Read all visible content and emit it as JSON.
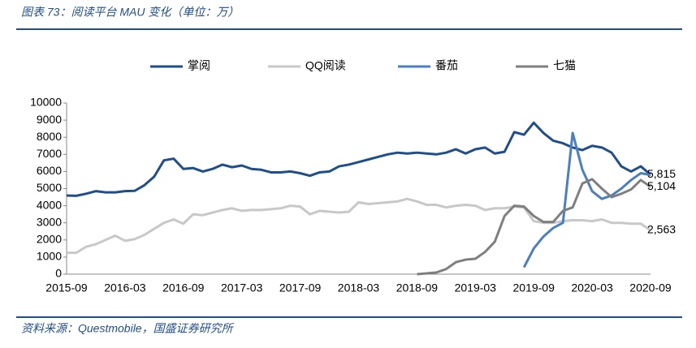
{
  "chart_data": {
    "type": "line",
    "title": "图表 73：阅读平台 MAU 变化（单位：万）",
    "source": "资料来源：Questmobile，国盛证券研究所",
    "categories": [
      "2015-09",
      null,
      null,
      null,
      null,
      null,
      "2016-03",
      null,
      null,
      null,
      null,
      null,
      "2016-09",
      null,
      null,
      null,
      null,
      null,
      "2017-03",
      null,
      null,
      null,
      null,
      null,
      "2017-09",
      null,
      null,
      null,
      null,
      null,
      "2018-03",
      null,
      null,
      null,
      null,
      null,
      "2018-09",
      null,
      null,
      null,
      null,
      null,
      "2019-03",
      null,
      null,
      null,
      null,
      null,
      "2019-09",
      null,
      null,
      null,
      null,
      null,
      "2020-03",
      null,
      null,
      null,
      null,
      null,
      "2020-09"
    ],
    "series": [
      {
        "name": "掌阅",
        "color": "#1f4e8c",
        "values": [
          4600,
          4580,
          4700,
          4850,
          4780,
          4780,
          4850,
          4870,
          5200,
          5700,
          6650,
          6750,
          6150,
          6200,
          6000,
          6150,
          6400,
          6250,
          6350,
          6150,
          6100,
          5950,
          5950,
          6000,
          5900,
          5750,
          5950,
          6000,
          6300,
          6400,
          6550,
          6700,
          6850,
          7000,
          7100,
          7050,
          7100,
          7050,
          7000,
          7100,
          7300,
          7050,
          7300,
          7400,
          7050,
          7150,
          8300,
          8150,
          8850,
          8250,
          7800,
          7650,
          7400,
          7250,
          7500,
          7400,
          7100,
          6300,
          6000,
          6300,
          5815
        ],
        "value_labels": [
          null,
          null,
          null,
          null,
          null,
          null,
          null,
          null,
          null,
          null,
          null,
          null,
          null,
          null,
          null,
          null,
          null,
          null,
          null,
          null,
          null,
          null,
          null,
          null,
          null,
          null,
          null,
          null,
          null,
          null,
          null,
          null,
          null,
          null,
          null,
          null,
          null,
          null,
          null,
          null,
          null,
          null,
          null,
          null,
          null,
          null,
          null,
          null,
          null,
          null,
          null,
          null,
          null,
          null,
          null,
          null,
          null,
          null,
          null,
          null,
          "5,815"
        ]
      },
      {
        "name": "QQ阅读",
        "color": "#c8c8c8",
        "values": [
          1250,
          1250,
          1600,
          1750,
          2000,
          2250,
          1950,
          2050,
          2300,
          2650,
          3000,
          3200,
          2950,
          3500,
          3450,
          3600,
          3750,
          3850,
          3700,
          3750,
          3750,
          3800,
          3850,
          4000,
          3950,
          3500,
          3700,
          3650,
          3600,
          3650,
          4200,
          4100,
          4150,
          4200,
          4250,
          4400,
          4250,
          4050,
          4050,
          3900,
          4000,
          4050,
          4000,
          3750,
          3850,
          3850,
          3950,
          3900,
          3100,
          3000,
          3000,
          3100,
          3150,
          3150,
          3100,
          3200,
          3000,
          3000,
          2950,
          2950,
          2563
        ],
        "value_labels": [
          null,
          null,
          null,
          null,
          null,
          null,
          null,
          null,
          null,
          null,
          null,
          null,
          null,
          null,
          null,
          null,
          null,
          null,
          null,
          null,
          null,
          null,
          null,
          null,
          null,
          null,
          null,
          null,
          null,
          null,
          null,
          null,
          null,
          null,
          null,
          null,
          null,
          null,
          null,
          null,
          null,
          null,
          null,
          null,
          null,
          null,
          null,
          null,
          null,
          null,
          null,
          null,
          null,
          null,
          null,
          null,
          null,
          null,
          null,
          null,
          "2,563"
        ]
      },
      {
        "name": "番茄",
        "color": "#4a7fc1",
        "values": [
          null,
          null,
          null,
          null,
          null,
          null,
          null,
          null,
          null,
          null,
          null,
          null,
          null,
          null,
          null,
          null,
          null,
          null,
          null,
          null,
          null,
          null,
          null,
          null,
          null,
          null,
          null,
          null,
          null,
          null,
          null,
          null,
          null,
          null,
          null,
          null,
          null,
          null,
          null,
          null,
          null,
          null,
          null,
          null,
          null,
          null,
          null,
          400,
          1500,
          2200,
          2700,
          3000,
          8250,
          6100,
          4850,
          4400,
          4600,
          5000,
          5500,
          5900,
          5800
        ]
      },
      {
        "name": "七猫",
        "color": "#7f7f7f",
        "values": [
          null,
          null,
          null,
          null,
          null,
          null,
          null,
          null,
          null,
          null,
          null,
          null,
          null,
          null,
          null,
          null,
          null,
          null,
          null,
          null,
          null,
          null,
          null,
          null,
          null,
          null,
          null,
          null,
          null,
          null,
          null,
          null,
          null,
          null,
          null,
          null,
          0,
          50,
          100,
          300,
          700,
          850,
          900,
          1300,
          1900,
          3400,
          4000,
          3950,
          3400,
          3050,
          3050,
          3700,
          3900,
          5300,
          5550,
          5000,
          4500,
          4700,
          4950,
          5500,
          5104
        ],
        "value_labels": [
          null,
          null,
          null,
          null,
          null,
          null,
          null,
          null,
          null,
          null,
          null,
          null,
          null,
          null,
          null,
          null,
          null,
          null,
          null,
          null,
          null,
          null,
          null,
          null,
          null,
          null,
          null,
          null,
          null,
          null,
          null,
          null,
          null,
          null,
          null,
          null,
          null,
          null,
          null,
          null,
          null,
          null,
          null,
          null,
          null,
          null,
          null,
          null,
          null,
          null,
          null,
          null,
          null,
          null,
          null,
          null,
          null,
          null,
          null,
          null,
          "5,104"
        ]
      }
    ],
    "ylim": [
      0,
      10000
    ],
    "yticks": [
      0,
      1000,
      2000,
      3000,
      4000,
      5000,
      6000,
      7000,
      8000,
      9000,
      10000
    ],
    "grid": false,
    "legend": "top"
  }
}
